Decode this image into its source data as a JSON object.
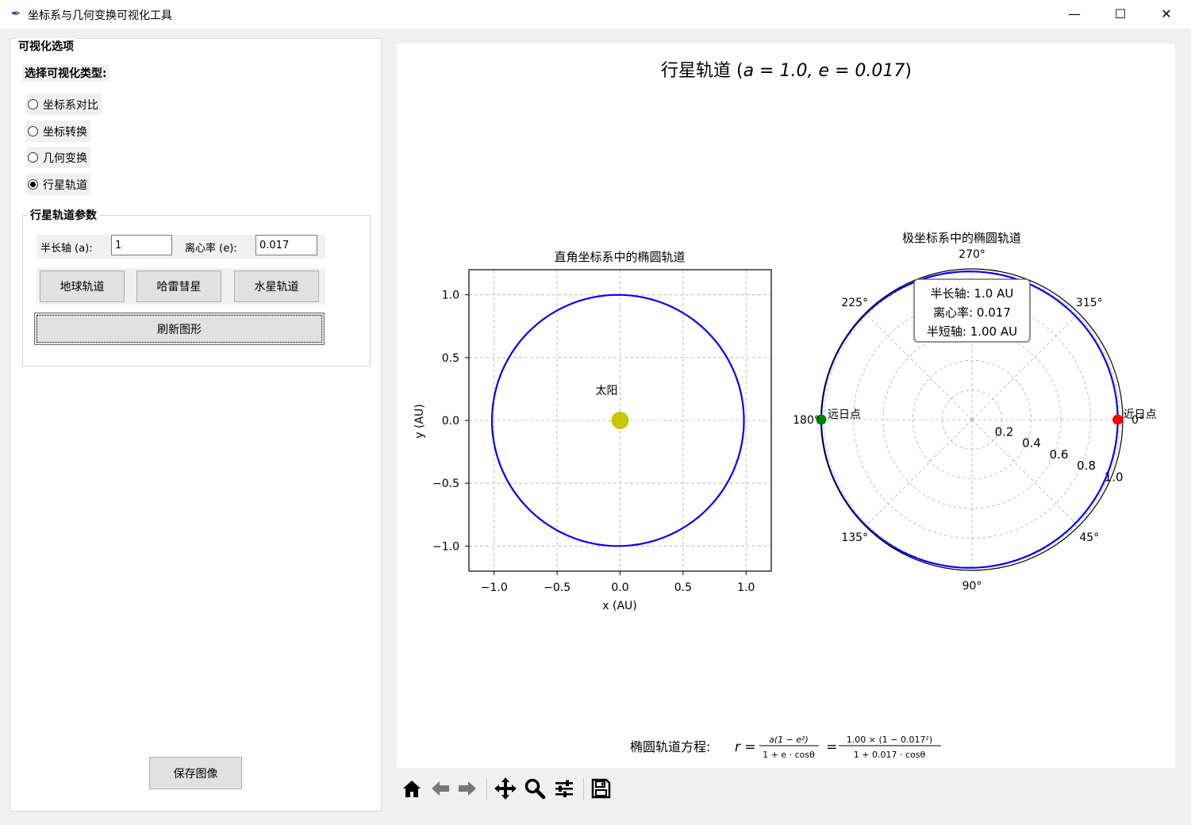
{
  "window": {
    "title": "坐标系与几何变换可视化工具",
    "minimize_glyph": "—",
    "maximize_glyph": "☐",
    "close_glyph": "✕"
  },
  "sidebar": {
    "section_title": "可视化选项",
    "type_label": "选择可视化类型:",
    "options": [
      {
        "label": "坐标系对比",
        "checked": false
      },
      {
        "label": "坐标转换",
        "checked": false
      },
      {
        "label": "几何变换",
        "checked": false
      },
      {
        "label": "行星轨道",
        "checked": true
      }
    ],
    "params": {
      "title": "行星轨道参数",
      "semi_major_label": "半长轴 (a):",
      "semi_major_value": "1",
      "eccentricity_label": "离心率 (e):",
      "eccentricity_value": "0.017"
    },
    "preset_buttons": [
      "地球轨道",
      "哈雷彗星",
      "水星轨道"
    ],
    "refresh_label": "刷新图形",
    "save_label": "保存图像"
  },
  "figure": {
    "suptitle_prefix": "行星轨道 (",
    "suptitle_math": "a = 1.0, e = 0.017",
    "suptitle_suffix": ")",
    "equation_label": "椭圆轨道方程:",
    "equation_lhs": "r =",
    "equation_num1": "a(1 − e²)",
    "equation_den1": "1 + e · cosθ",
    "equation_eq": "=",
    "equation_num2": "1.00 × (1 − 0.017²)",
    "equation_den2": "1 + 0.017 · cosθ"
  },
  "chart_data": [
    {
      "type": "line",
      "title": "直角坐标系中的椭圆轨道",
      "xlabel": "x (AU)",
      "ylabel": "y (AU)",
      "xlim": [
        -1.2,
        1.2
      ],
      "ylim": [
        -1.2,
        1.2
      ],
      "xticks": [
        "−1.0",
        "−0.5",
        "0.0",
        "0.5",
        "1.0"
      ],
      "yticks": [
        "1.0",
        "0.5",
        "0.0",
        "−0.5",
        "−1.0"
      ],
      "tick_values": [
        -1.0,
        -0.5,
        0.0,
        0.5,
        1.0
      ],
      "grid": true,
      "series": [
        {
          "semi_major_axis": 1.0,
          "eccentricity": 0.017,
          "center_x": -0.017,
          "color": "#0000ff"
        }
      ],
      "sun": {
        "x": 0,
        "y": 0,
        "label": "太阳",
        "color": "#c8c800"
      }
    },
    {
      "type": "line",
      "subtype": "polar",
      "title": "极坐标系中的椭圆轨道",
      "rmax": 1.017,
      "angle_labels": [
        {
          "deg": 0,
          "text": "0°"
        },
        {
          "deg": 45,
          "text": "45°"
        },
        {
          "deg": 90,
          "text": "90°"
        },
        {
          "deg": 135,
          "text": "135°"
        },
        {
          "deg": 180,
          "text": "180°"
        },
        {
          "deg": 225,
          "text": "225°"
        },
        {
          "deg": 270,
          "text": "270°"
        },
        {
          "deg": 315,
          "text": "315°"
        }
      ],
      "radial_ticks": [
        {
          "r": 0.2,
          "text": "0.2"
        },
        {
          "r": 0.4,
          "text": "0.4"
        },
        {
          "r": 0.6,
          "text": "0.6"
        },
        {
          "r": 0.8,
          "text": "0.8"
        },
        {
          "r": 1.0,
          "text": "1.0"
        }
      ],
      "grid": true,
      "orbit": {
        "semi_major_axis": 1.0,
        "eccentricity": 0.017,
        "color": "#0000ff"
      },
      "perihelion": {
        "label": "近日点",
        "theta_deg": 0,
        "r": 0.983,
        "color": "#ff0000"
      },
      "aphelion": {
        "label": "远日点",
        "theta_deg": 180,
        "r": 1.017,
        "color": "#008000"
      },
      "info_box": [
        "半长轴: 1.0 AU",
        "离心率: 0.017",
        "半短轴: 1.00 AU"
      ]
    }
  ],
  "toolbar": {
    "tools": [
      "home-icon",
      "back-icon",
      "forward-icon",
      "pan-icon",
      "zoom-icon",
      "configure-icon",
      "save-icon"
    ]
  }
}
